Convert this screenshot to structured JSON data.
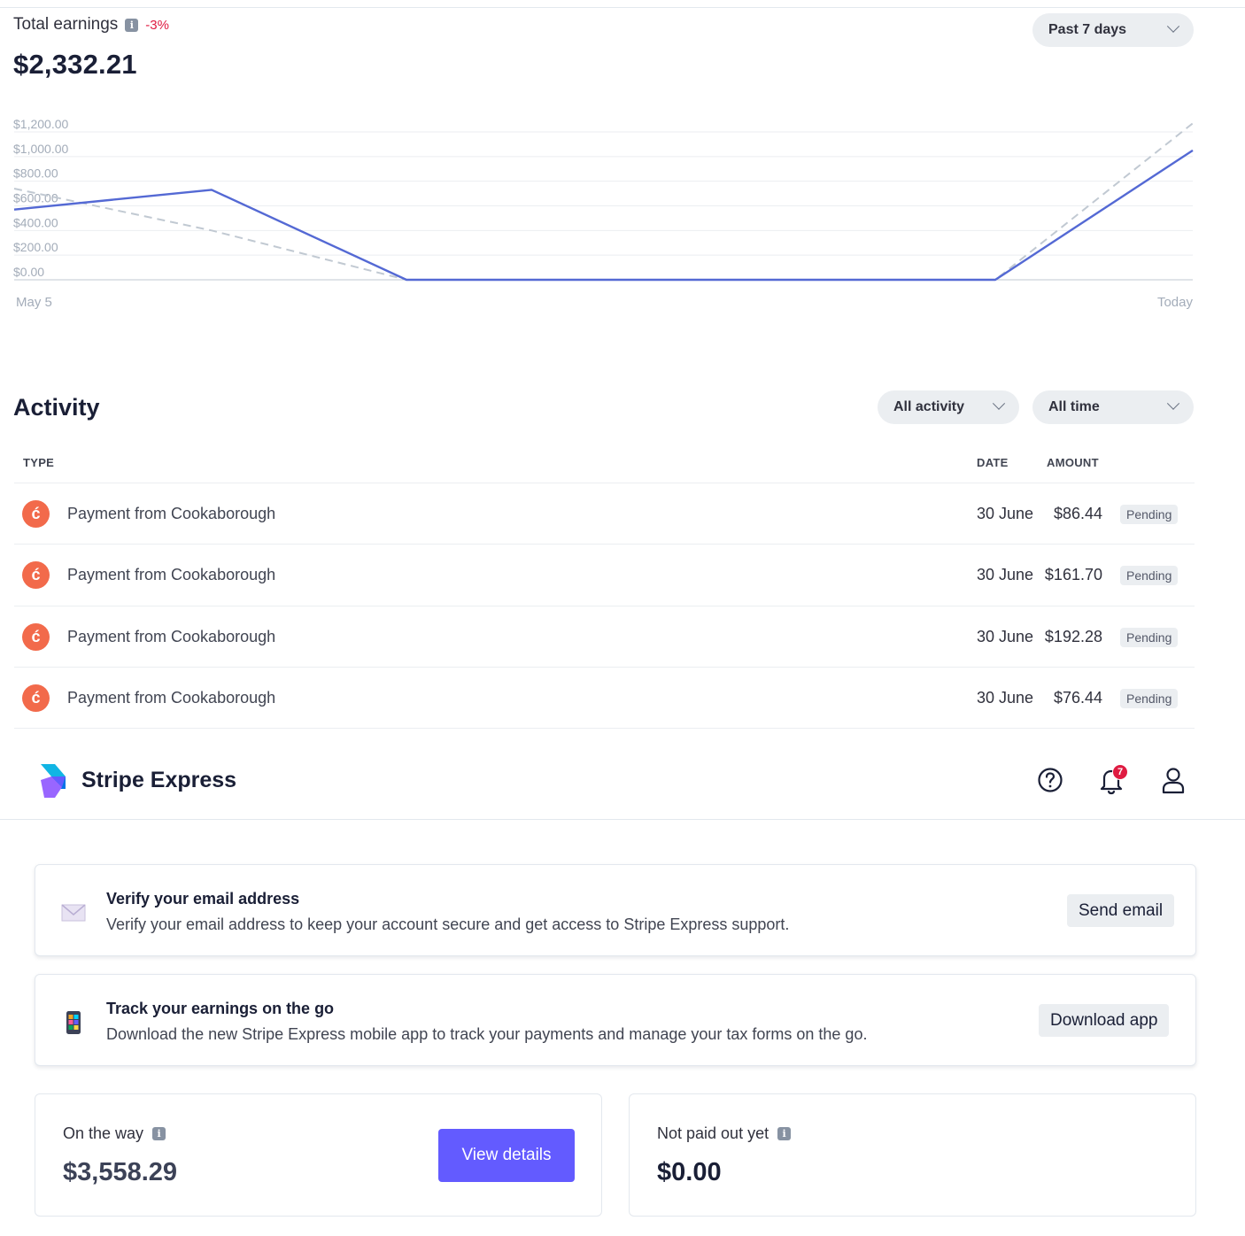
{
  "earnings": {
    "title": "Total earnings",
    "change": "-3%",
    "total": "$2,332.21",
    "range_label": "Past 7 days"
  },
  "chart_data": {
    "type": "line",
    "title": "",
    "y_ticks": [
      "$1,200.00",
      "$1,000.00",
      "$800.00",
      "$600.00",
      "$400.00",
      "$200.00",
      "$0.00"
    ],
    "ylim": [
      0,
      1200
    ],
    "x_start_label": "May 5",
    "x_end_label": "Today",
    "grid": true,
    "series": [
      {
        "values": [
          570,
          730,
          0,
          0,
          0,
          0,
          0,
          1050
        ],
        "color": "#5469d4",
        "style": "solid"
      },
      {
        "values": [
          740,
          400,
          0,
          0,
          0,
          0,
          0,
          1270
        ],
        "color": "#c1c9d2",
        "style": "dashed"
      }
    ]
  },
  "activity": {
    "title": "Activity",
    "filter_type": "All activity",
    "filter_time": "All time",
    "columns": {
      "type": "TYPE",
      "date": "DATE",
      "amount": "AMOUNT"
    },
    "rows": [
      {
        "type": "Payment from Cookaborough",
        "date": "30 June",
        "amount": "$86.44",
        "status": "Pending"
      },
      {
        "type": "Payment from Cookaborough",
        "date": "30 June",
        "amount": "$161.70",
        "status": "Pending"
      },
      {
        "type": "Payment from Cookaborough",
        "date": "30 June",
        "amount": "$192.28",
        "status": "Pending"
      },
      {
        "type": "Payment from Cookaborough",
        "date": "30 June",
        "amount": "$76.44",
        "status": "Pending"
      }
    ]
  },
  "header": {
    "brand": "Stripe Express",
    "notification_count": "7",
    "icons": [
      "help-icon",
      "bell-icon",
      "user-icon"
    ]
  },
  "notices": [
    {
      "icon": "envelope-icon",
      "title": "Verify your email address",
      "body": "Verify your email address to keep your account secure and get access to Stripe Express support.",
      "button": "Send email"
    },
    {
      "icon": "phone-icon",
      "title": "Track your earnings on the go",
      "body": "Download the new Stripe Express mobile app to track your payments and manage your tax forms on the go.",
      "button": "Download app"
    }
  ],
  "balances": {
    "on_the_way": {
      "label": "On the way",
      "value": "$3,558.29",
      "button": "View details"
    },
    "not_paid": {
      "label": "Not paid out yet",
      "value": "$0.00"
    }
  },
  "colors": {
    "accent": "#635bff",
    "chart_line": "#5469d4",
    "negative": "#df1b41",
    "payment_icon": "#f26a4b"
  }
}
